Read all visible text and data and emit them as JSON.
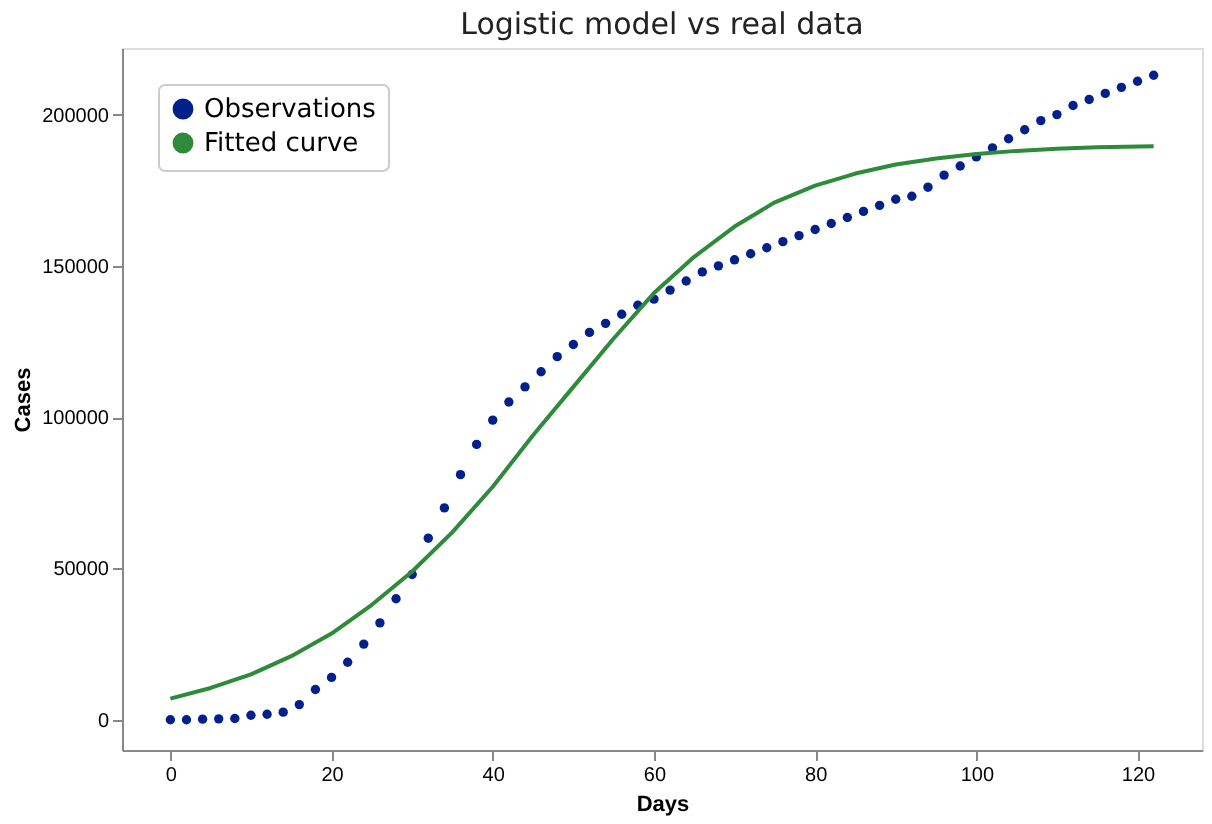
{
  "chart_data": {
    "type": "scatter",
    "title": "Logistic model vs real data",
    "xlabel": "Days",
    "ylabel": "Cases",
    "xlim": [
      -6,
      128
    ],
    "xticks": [
      0,
      20,
      40,
      60,
      80,
      100,
      120
    ],
    "ylim": [
      -10000,
      222000
    ],
    "yticks": [
      0,
      50000,
      100000,
      150000,
      200000
    ],
    "grid": false,
    "legend": "top left",
    "series": [
      {
        "name": "Observations",
        "marker": "circle",
        "color": "#00208c",
        "x": [
          0,
          2,
          4,
          6,
          8,
          10,
          12,
          14,
          16,
          18,
          20,
          22,
          24,
          26,
          28,
          30,
          32,
          34,
          36,
          38,
          40,
          42,
          44,
          46,
          48,
          50,
          52,
          54,
          56,
          58,
          60,
          62,
          64,
          66,
          68,
          70,
          72,
          74,
          76,
          78,
          80,
          82,
          84,
          86,
          88,
          90,
          92,
          94,
          96,
          98,
          100,
          102,
          104,
          106,
          108,
          110,
          112,
          114,
          116,
          118,
          120,
          122
        ],
        "values": [
          0,
          0,
          200,
          300,
          400,
          1500,
          1800,
          2500,
          5000,
          10000,
          14000,
          19000,
          25000,
          32000,
          40000,
          48000,
          60000,
          70000,
          81000,
          91000,
          99000,
          105000,
          110000,
          115000,
          120000,
          124000,
          128000,
          131000,
          134000,
          137000,
          139000,
          142000,
          145000,
          148000,
          150000,
          152000,
          154000,
          156000,
          158000,
          160000,
          162000,
          164000,
          166000,
          168000,
          170000,
          172000,
          173000,
          176000,
          180000,
          183000,
          186000,
          189000,
          192000,
          195000,
          198000,
          200000,
          203000,
          205000,
          207000,
          209000,
          211000,
          213000
        ]
      },
      {
        "name": "Fitted curve",
        "type": "line",
        "line_style": "solid",
        "color": "#2e8b3a",
        "x": [
          0,
          5,
          10,
          15,
          20,
          25,
          30,
          35,
          40,
          45,
          50,
          55,
          60,
          65,
          70,
          75,
          80,
          85,
          90,
          95,
          100,
          105,
          110,
          115,
          122
        ],
        "values": [
          7000,
          10500,
          15000,
          21000,
          28500,
          38000,
          49000,
          62000,
          77000,
          94000,
          110000,
          126000,
          141000,
          153000,
          163000,
          171000,
          176500,
          180500,
          183500,
          185500,
          187000,
          188000,
          188700,
          189200,
          189500
        ]
      }
    ]
  }
}
